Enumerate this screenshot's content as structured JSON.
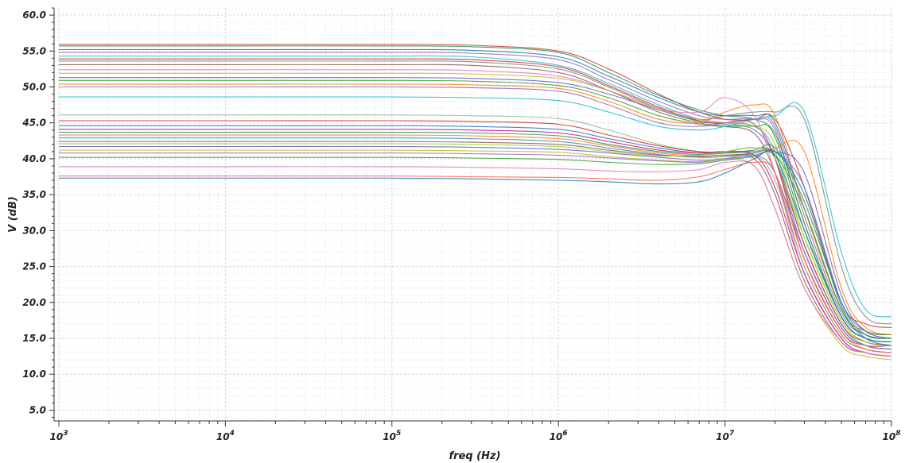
{
  "chart_data": {
    "type": "line",
    "title": "",
    "xlabel": "freq (Hz)",
    "ylabel": "V (dB)",
    "xscale": "log",
    "xlim": [
      1000,
      100000000
    ],
    "ylim": [
      3.5,
      61
    ],
    "grid": true,
    "legend": "none",
    "x_ticks": [
      {
        "value": 1000,
        "base": "10",
        "exp": "3"
      },
      {
        "value": 10000,
        "base": "10",
        "exp": "4"
      },
      {
        "value": 100000,
        "base": "10",
        "exp": "5"
      },
      {
        "value": 1000000,
        "base": "10",
        "exp": "6"
      },
      {
        "value": 10000000,
        "base": "10",
        "exp": "7"
      },
      {
        "value": 100000000,
        "base": "10",
        "exp": "8"
      }
    ],
    "y_ticks": [
      {
        "value": 5,
        "label": "5.0"
      },
      {
        "value": 10,
        "label": "10.0"
      },
      {
        "value": 15,
        "label": "15.0"
      },
      {
        "value": 20,
        "label": "20.0"
      },
      {
        "value": 25,
        "label": "25.0"
      },
      {
        "value": 30,
        "label": "30.0"
      },
      {
        "value": 35,
        "label": "35.0"
      },
      {
        "value": 40,
        "label": "40.0"
      },
      {
        "value": 45,
        "label": "45.0"
      },
      {
        "value": 50,
        "label": "50.0"
      },
      {
        "value": 55,
        "label": "55.0"
      },
      {
        "value": 60,
        "label": "60.0"
      }
    ],
    "x_sample_hz": [
      1000,
      10000,
      100000,
      300000,
      1000000,
      2000000,
      4000000,
      7000000,
      10000000,
      15000000,
      20000000,
      30000000,
      50000000,
      70000000,
      100000000
    ],
    "series": [
      {
        "color": "#c0392b",
        "values": [
          55.9,
          55.9,
          55.9,
          55.8,
          55.0,
          52.5,
          49.0,
          46.5,
          45.5,
          44.8,
          40.0,
          26.0,
          16.0,
          14.0,
          14.0
        ]
      },
      {
        "color": "#2e8b57",
        "values": [
          55.7,
          55.7,
          55.7,
          55.6,
          54.8,
          52.0,
          48.8,
          46.8,
          46.0,
          45.5,
          43.0,
          30.0,
          18.0,
          15.0,
          14.5
        ]
      },
      {
        "color": "#1f77b4",
        "values": [
          55.2,
          55.2,
          55.2,
          55.1,
          54.2,
          51.5,
          48.5,
          46.5,
          46.0,
          46.0,
          45.0,
          33.0,
          19.0,
          16.0,
          15.5
        ]
      },
      {
        "color": "#9467bd",
        "values": [
          54.8,
          54.8,
          54.8,
          54.7,
          53.8,
          51.0,
          48.0,
          46.0,
          45.5,
          45.5,
          44.0,
          31.0,
          18.0,
          15.0,
          14.5
        ]
      },
      {
        "color": "#17becf",
        "values": [
          54.3,
          54.3,
          54.3,
          54.2,
          53.0,
          50.5,
          47.5,
          45.5,
          45.0,
          44.5,
          41.0,
          28.0,
          17.0,
          14.0,
          13.5
        ]
      },
      {
        "color": "#d62728",
        "values": [
          53.9,
          53.9,
          53.9,
          53.8,
          52.8,
          50.2,
          47.2,
          45.3,
          45.0,
          45.5,
          45.5,
          36.0,
          20.0,
          17.0,
          16.5
        ]
      },
      {
        "color": "#7f7f7f",
        "values": [
          53.6,
          53.6,
          53.6,
          53.5,
          52.5,
          50.0,
          47.0,
          45.5,
          46.0,
          46.5,
          46.5,
          45.5,
          25.0,
          18.0,
          17.0
        ]
      },
      {
        "color": "#8c564b",
        "values": [
          53.1,
          53.1,
          53.1,
          53.0,
          52.0,
          49.5,
          46.5,
          45.0,
          44.5,
          43.5,
          38.0,
          25.0,
          15.5,
          13.5,
          13.0
        ]
      },
      {
        "color": "#e377c2",
        "values": [
          52.4,
          52.4,
          52.4,
          52.3,
          51.5,
          49.5,
          47.0,
          46.5,
          48.5,
          46.0,
          38.0,
          24.0,
          15.0,
          13.0,
          12.5
        ]
      },
      {
        "color": "#bcbd22",
        "values": [
          51.9,
          51.9,
          51.9,
          51.8,
          51.2,
          49.5,
          47.0,
          45.5,
          45.0,
          44.5,
          42.0,
          29.0,
          17.5,
          14.5,
          14.0
        ]
      },
      {
        "color": "#6a5acd",
        "values": [
          51.3,
          51.3,
          51.3,
          51.2,
          50.6,
          49.0,
          46.8,
          45.2,
          44.8,
          44.0,
          40.0,
          27.0,
          16.5,
          14.0,
          13.5
        ]
      },
      {
        "color": "#2ca02c",
        "values": [
          50.9,
          50.9,
          50.9,
          50.8,
          50.2,
          48.5,
          46.0,
          44.8,
          44.5,
          44.5,
          43.5,
          31.0,
          18.0,
          15.0,
          14.5
        ]
      },
      {
        "color": "#ff7f0e",
        "values": [
          50.4,
          50.4,
          50.4,
          50.3,
          49.8,
          48.0,
          45.5,
          45.0,
          46.5,
          47.5,
          46.0,
          33.0,
          19.0,
          16.0,
          15.5
        ]
      },
      {
        "color": "#9467bd",
        "values": [
          50.0,
          50.0,
          50.0,
          49.9,
          49.4,
          47.5,
          45.0,
          44.5,
          45.0,
          45.5,
          44.5,
          32.0,
          18.5,
          15.5,
          15.0
        ]
      },
      {
        "color": "#17becf",
        "values": [
          48.6,
          48.6,
          48.6,
          48.5,
          48.1,
          46.5,
          44.5,
          44.0,
          44.5,
          45.5,
          46.0,
          46.5,
          27.0,
          19.0,
          18.0
        ]
      },
      {
        "color": "#8fbc8f",
        "values": [
          46.1,
          46.1,
          46.1,
          46.0,
          45.6,
          44.0,
          42.0,
          41.0,
          40.8,
          40.5,
          37.0,
          25.0,
          15.5,
          13.5,
          13.0
        ]
      },
      {
        "color": "#d62728",
        "values": [
          45.3,
          45.3,
          45.3,
          45.2,
          44.8,
          43.3,
          41.8,
          41.0,
          41.0,
          41.5,
          40.0,
          28.0,
          17.0,
          14.5,
          14.0
        ]
      },
      {
        "color": "#1f77b4",
        "values": [
          44.6,
          44.6,
          44.6,
          44.5,
          44.1,
          42.8,
          41.5,
          40.8,
          40.8,
          41.0,
          40.5,
          30.0,
          18.0,
          15.0,
          14.5
        ]
      },
      {
        "color": "#c71585",
        "values": [
          44.1,
          44.1,
          44.1,
          44.0,
          43.6,
          42.4,
          41.2,
          40.8,
          41.0,
          40.5,
          36.0,
          24.0,
          15.0,
          13.0,
          12.5
        ]
      },
      {
        "color": "#2e8b57",
        "values": [
          43.7,
          43.7,
          43.7,
          43.6,
          43.2,
          42.0,
          41.0,
          40.6,
          40.8,
          41.2,
          41.5,
          34.0,
          20.0,
          16.0,
          15.5
        ]
      },
      {
        "color": "#ff7f0e",
        "values": [
          43.3,
          43.3,
          43.3,
          43.2,
          42.8,
          41.8,
          40.8,
          40.4,
          40.5,
          40.8,
          41.5,
          41.0,
          22.0,
          16.5,
          15.5
        ]
      },
      {
        "color": "#4682b4",
        "values": [
          42.9,
          42.9,
          42.9,
          42.8,
          42.4,
          41.5,
          40.6,
          40.2,
          40.3,
          40.8,
          41.0,
          36.0,
          20.0,
          15.5,
          15.0
        ]
      },
      {
        "color": "#8c564b",
        "values": [
          42.4,
          42.4,
          42.4,
          42.3,
          42.0,
          41.2,
          40.5,
          40.3,
          40.5,
          40.0,
          35.0,
          23.0,
          14.5,
          13.0,
          12.5
        ]
      },
      {
        "color": "#9acd32",
        "values": [
          42.1,
          42.1,
          42.1,
          42.0,
          41.7,
          41.0,
          40.4,
          40.5,
          41.0,
          41.5,
          40.0,
          29.0,
          17.5,
          14.5,
          14.0
        ]
      },
      {
        "color": "#6a5acd",
        "values": [
          41.7,
          41.7,
          41.7,
          41.6,
          41.3,
          40.8,
          40.2,
          39.8,
          40.0,
          40.5,
          41.0,
          38.0,
          21.0,
          16.0,
          15.0
        ]
      },
      {
        "color": "#bcbd22",
        "values": [
          41.2,
          41.2,
          41.2,
          41.1,
          40.9,
          40.3,
          39.8,
          39.6,
          40.0,
          39.0,
          33.0,
          22.0,
          14.0,
          12.5,
          12.0
        ]
      },
      {
        "color": "#9467bd",
        "values": [
          40.8,
          40.8,
          40.8,
          40.7,
          40.5,
          40.1,
          39.7,
          39.5,
          40.0,
          40.5,
          38.0,
          27.0,
          16.5,
          14.0,
          13.5
        ]
      },
      {
        "color": "#2ca02c",
        "values": [
          40.2,
          40.2,
          40.2,
          40.1,
          39.9,
          39.5,
          39.2,
          39.3,
          39.8,
          40.3,
          40.5,
          33.0,
          19.0,
          15.5,
          15.0
        ]
      },
      {
        "color": "#e377c2",
        "values": [
          38.9,
          38.9,
          38.9,
          38.8,
          38.6,
          38.3,
          38.2,
          38.5,
          39.5,
          39.0,
          33.0,
          22.0,
          14.5,
          13.0,
          12.5
        ]
      },
      {
        "color": "#ff6347",
        "values": [
          37.6,
          37.6,
          37.6,
          37.5,
          37.4,
          37.2,
          37.0,
          37.5,
          38.5,
          39.5,
          38.0,
          26.0,
          16.0,
          13.5,
          13.0
        ]
      },
      {
        "color": "#1f77b4",
        "values": [
          37.3,
          37.3,
          37.3,
          37.2,
          37.0,
          36.8,
          36.5,
          36.8,
          38.0,
          40.0,
          41.0,
          35.0,
          19.5,
          15.0,
          14.0
        ]
      }
    ]
  }
}
